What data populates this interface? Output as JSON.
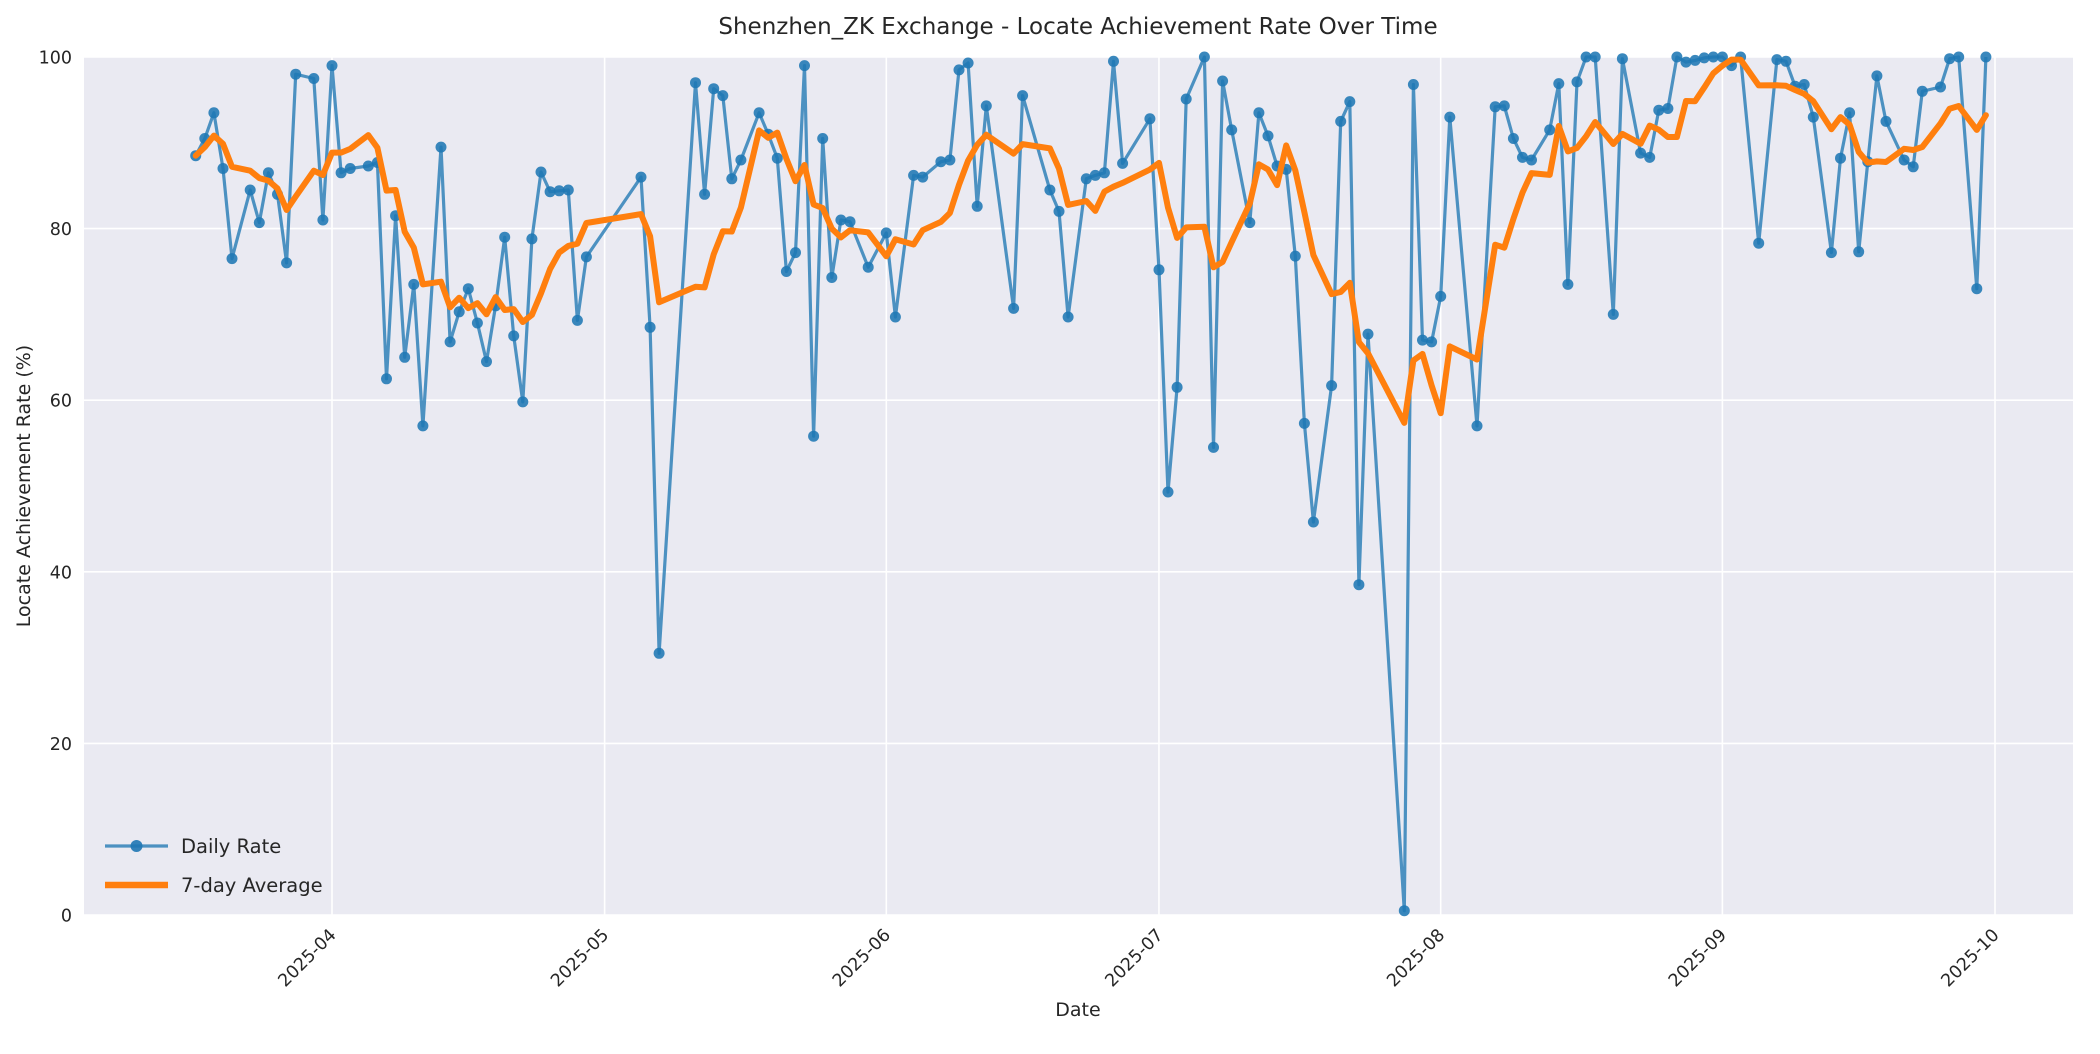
{
  "chart_data": {
    "type": "line",
    "title": "Shenzhen_ZK Exchange - Locate Achievement Rate Over Time",
    "xlabel": "Date",
    "ylabel": "Locate Achievement Rate (%)",
    "ylim": [
      0,
      100
    ],
    "yticks": [
      0,
      20,
      40,
      60,
      80,
      100
    ],
    "xticks": [
      {
        "label": "2025-04",
        "date": "2025-04-01"
      },
      {
        "label": "2025-05",
        "date": "2025-05-01"
      },
      {
        "label": "2025-06",
        "date": "2025-06-01"
      },
      {
        "label": "2025-07",
        "date": "2025-07-01"
      },
      {
        "label": "2025-08",
        "date": "2025-08-01"
      },
      {
        "label": "2025-09",
        "date": "2025-09-01"
      },
      {
        "label": "2025-10",
        "date": "2025-10-01"
      }
    ],
    "grid": true,
    "plot_background": "#eaeaf2",
    "grid_color": "#ffffff",
    "text_color": "#262626",
    "legend_position": "lower left",
    "series": [
      {
        "name": "Daily Rate",
        "color": "#1f77b4",
        "style": "line_with_circle_markers",
        "points": [
          [
            "2025-03-17",
            88.5
          ],
          [
            "2025-03-18",
            90.5
          ],
          [
            "2025-03-19",
            93.5
          ],
          [
            "2025-03-20",
            87.0
          ],
          [
            "2025-03-21",
            76.5
          ],
          [
            "2025-03-23",
            84.5
          ],
          [
            "2025-03-24",
            80.7
          ],
          [
            "2025-03-25",
            86.5
          ],
          [
            "2025-03-26",
            84.0
          ],
          [
            "2025-03-27",
            76.0
          ],
          [
            "2025-03-28",
            98.0
          ],
          [
            "2025-03-30",
            97.5
          ],
          [
            "2025-03-31",
            81.0
          ],
          [
            "2025-04-01",
            99.0
          ],
          [
            "2025-04-02",
            86.5
          ],
          [
            "2025-04-03",
            87.0
          ],
          [
            "2025-04-05",
            87.3
          ],
          [
            "2025-04-06",
            87.7
          ],
          [
            "2025-04-07",
            62.5
          ],
          [
            "2025-04-08",
            81.5
          ],
          [
            "2025-04-09",
            65.0
          ],
          [
            "2025-04-10",
            73.5
          ],
          [
            "2025-04-11",
            57.0
          ],
          [
            "2025-04-13",
            89.5
          ],
          [
            "2025-04-14",
            66.8
          ],
          [
            "2025-04-15",
            70.3
          ],
          [
            "2025-04-16",
            73.0
          ],
          [
            "2025-04-17",
            69.0
          ],
          [
            "2025-04-18",
            64.5
          ],
          [
            "2025-04-19",
            71.0
          ],
          [
            "2025-04-20",
            79.0
          ],
          [
            "2025-04-21",
            67.5
          ],
          [
            "2025-04-22",
            59.8
          ],
          [
            "2025-04-23",
            78.8
          ],
          [
            "2025-04-24",
            86.6
          ],
          [
            "2025-04-25",
            84.3
          ],
          [
            "2025-04-26",
            84.4
          ],
          [
            "2025-04-27",
            84.5
          ],
          [
            "2025-04-28",
            69.3
          ],
          [
            "2025-04-29",
            76.7
          ],
          [
            "2025-05-05",
            86.0
          ],
          [
            "2025-05-06",
            68.5
          ],
          [
            "2025-05-07",
            30.5
          ],
          [
            "2025-05-11",
            97.0
          ],
          [
            "2025-05-12",
            84.0
          ],
          [
            "2025-05-13",
            96.3
          ],
          [
            "2025-05-14",
            95.5
          ],
          [
            "2025-05-15",
            85.8
          ],
          [
            "2025-05-16",
            88.0
          ],
          [
            "2025-05-18",
            93.5
          ],
          [
            "2025-05-19",
            91.0
          ],
          [
            "2025-05-20",
            88.2
          ],
          [
            "2025-05-21",
            75.0
          ],
          [
            "2025-05-22",
            77.2
          ],
          [
            "2025-05-23",
            99.0
          ],
          [
            "2025-05-24",
            55.8
          ],
          [
            "2025-05-25",
            90.5
          ],
          [
            "2025-05-26",
            74.3
          ],
          [
            "2025-05-27",
            81.0
          ],
          [
            "2025-05-28",
            80.8
          ],
          [
            "2025-05-30",
            75.5
          ],
          [
            "2025-06-01",
            79.5
          ],
          [
            "2025-06-02",
            69.7
          ],
          [
            "2025-06-04",
            86.2
          ],
          [
            "2025-06-05",
            86.0
          ],
          [
            "2025-06-07",
            87.8
          ],
          [
            "2025-06-08",
            88.0
          ],
          [
            "2025-06-09",
            98.5
          ],
          [
            "2025-06-10",
            99.3
          ],
          [
            "2025-06-11",
            82.6
          ],
          [
            "2025-06-12",
            94.3
          ],
          [
            "2025-06-15",
            70.7
          ],
          [
            "2025-06-16",
            95.5
          ],
          [
            "2025-06-19",
            84.5
          ],
          [
            "2025-06-20",
            82.0
          ],
          [
            "2025-06-21",
            69.7
          ],
          [
            "2025-06-23",
            85.8
          ],
          [
            "2025-06-24",
            86.2
          ],
          [
            "2025-06-25",
            86.5
          ],
          [
            "2025-06-26",
            99.5
          ],
          [
            "2025-06-27",
            87.6
          ],
          [
            "2025-06-30",
            92.8
          ],
          [
            "2025-07-01",
            75.2
          ],
          [
            "2025-07-02",
            49.3
          ],
          [
            "2025-07-03",
            61.5
          ],
          [
            "2025-07-04",
            95.1
          ],
          [
            "2025-07-06",
            100.0
          ],
          [
            "2025-07-07",
            54.5
          ],
          [
            "2025-07-08",
            97.2
          ],
          [
            "2025-07-09",
            91.5
          ],
          [
            "2025-07-11",
            80.7
          ],
          [
            "2025-07-12",
            93.5
          ],
          [
            "2025-07-13",
            90.8
          ],
          [
            "2025-07-14",
            87.3
          ],
          [
            "2025-07-15",
            86.9
          ],
          [
            "2025-07-16",
            76.8
          ],
          [
            "2025-07-17",
            57.3
          ],
          [
            "2025-07-18",
            45.8
          ],
          [
            "2025-07-20",
            61.7
          ],
          [
            "2025-07-21",
            92.5
          ],
          [
            "2025-07-22",
            94.8
          ],
          [
            "2025-07-23",
            38.5
          ],
          [
            "2025-07-24",
            67.7
          ],
          [
            "2025-07-28",
            0.5
          ],
          [
            "2025-07-29",
            96.8
          ],
          [
            "2025-07-30",
            67.0
          ],
          [
            "2025-07-31",
            66.8
          ],
          [
            "2025-08-01",
            72.1
          ],
          [
            "2025-08-02",
            93.0
          ],
          [
            "2025-08-05",
            57.0
          ],
          [
            "2025-08-07",
            94.2
          ],
          [
            "2025-08-08",
            94.3
          ],
          [
            "2025-08-09",
            90.5
          ],
          [
            "2025-08-10",
            88.3
          ],
          [
            "2025-08-11",
            88.0
          ],
          [
            "2025-08-13",
            91.5
          ],
          [
            "2025-08-14",
            96.9
          ],
          [
            "2025-08-15",
            73.5
          ],
          [
            "2025-08-16",
            97.1
          ],
          [
            "2025-08-17",
            100.0
          ],
          [
            "2025-08-18",
            100.0
          ],
          [
            "2025-08-20",
            70.0
          ],
          [
            "2025-08-21",
            99.8
          ],
          [
            "2025-08-23",
            88.8
          ],
          [
            "2025-08-24",
            88.3
          ],
          [
            "2025-08-25",
            93.8
          ],
          [
            "2025-08-26",
            94.0
          ],
          [
            "2025-08-27",
            100.0
          ],
          [
            "2025-08-28",
            99.4
          ],
          [
            "2025-08-29",
            99.6
          ],
          [
            "2025-08-30",
            99.9
          ],
          [
            "2025-08-31",
            100.0
          ],
          [
            "2025-09-01",
            100.0
          ],
          [
            "2025-09-02",
            99.0
          ],
          [
            "2025-09-03",
            100.0
          ],
          [
            "2025-09-05",
            78.3
          ],
          [
            "2025-09-07",
            99.7
          ],
          [
            "2025-09-08",
            99.5
          ],
          [
            "2025-09-09",
            96.6
          ],
          [
            "2025-09-10",
            96.8
          ],
          [
            "2025-09-11",
            93.0
          ],
          [
            "2025-09-13",
            77.2
          ],
          [
            "2025-09-14",
            88.2
          ],
          [
            "2025-09-15",
            93.5
          ],
          [
            "2025-09-16",
            77.3
          ],
          [
            "2025-09-17",
            87.8
          ],
          [
            "2025-09-18",
            97.8
          ],
          [
            "2025-09-19",
            92.5
          ],
          [
            "2025-09-21",
            88.0
          ],
          [
            "2025-09-22",
            87.2
          ],
          [
            "2025-09-23",
            96.0
          ],
          [
            "2025-09-25",
            96.5
          ],
          [
            "2025-09-26",
            99.8
          ],
          [
            "2025-09-27",
            100.0
          ],
          [
            "2025-09-29",
            73.0
          ],
          [
            "2025-09-30",
            100.0
          ]
        ]
      },
      {
        "name": "7-day Average",
        "color": "#ff7f0e",
        "style": "thick_line",
        "derived": "rolling mean of Daily Rate over 7 points, min_periods=1"
      }
    ]
  }
}
